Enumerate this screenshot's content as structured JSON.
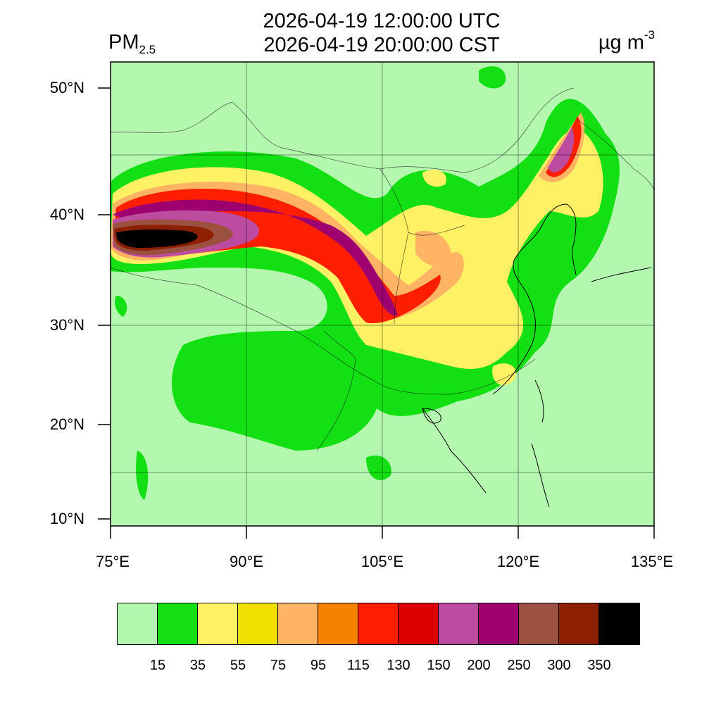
{
  "header": {
    "utc_time": "2026-04-19 12:00:00 UTC",
    "local_time": "2026-04-19 20:00:00 CST",
    "variable_main": "PM",
    "variable_sub": "2.5",
    "unit_main": "µg m",
    "unit_sup": "-3"
  },
  "axes": {
    "lat_labels": [
      "50°N",
      "40°N",
      "30°N",
      "20°N",
      "10°N"
    ],
    "lon_labels": [
      "75°E",
      "90°E",
      "105°E",
      "120°E",
      "135°E"
    ]
  },
  "legend": {
    "colors": [
      "#b4f8b0",
      "#12e012",
      "#fff064",
      "#f0e000",
      "#ffb464",
      "#f58200",
      "#ff1e00",
      "#dd0000",
      "#bb4ca0",
      "#9e0070",
      "#9c5040",
      "#8c2000",
      "#000000"
    ],
    "labels": [
      "15",
      "35",
      "55",
      "75",
      "95",
      "115",
      "130",
      "150",
      "200",
      "250",
      "300",
      "350"
    ]
  }
}
